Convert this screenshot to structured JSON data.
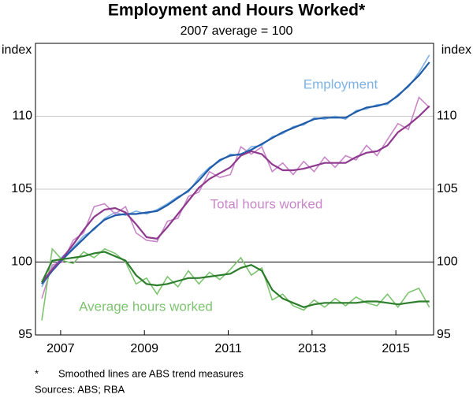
{
  "chart_data": {
    "type": "line",
    "title": "Employment and Hours Worked*",
    "subtitle": "2007 average = 100",
    "y_label_left": "index",
    "y_label_right": "index",
    "x": [
      2006.55,
      2006.8,
      2007.05,
      2007.3,
      2007.55,
      2007.8,
      2008.05,
      2008.3,
      2008.55,
      2008.8,
      2009.05,
      2009.3,
      2009.55,
      2009.8,
      2010.05,
      2010.3,
      2010.55,
      2010.8,
      2011.05,
      2011.3,
      2011.55,
      2011.8,
      2012.05,
      2012.3,
      2012.55,
      2012.8,
      2013.05,
      2013.3,
      2013.55,
      2013.8,
      2014.05,
      2014.3,
      2014.55,
      2014.8,
      2015.05,
      2015.3,
      2015.55,
      2015.8
    ],
    "xlim": [
      2006.4,
      2015.9
    ],
    "xticks": [
      2007,
      2009,
      2011,
      2013,
      2015
    ],
    "ylim": [
      95,
      115
    ],
    "yticks": [
      95,
      100,
      105,
      110
    ],
    "grid": true,
    "reference_line": 100,
    "series": [
      {
        "name": "Employment",
        "color": "#7fb2e5",
        "trend_color": "#1f5ba8",
        "values": [
          98.3,
          99.6,
          100.4,
          101.0,
          101.8,
          102.2,
          103.0,
          103.4,
          103.2,
          103.5,
          103.3,
          103.6,
          104.0,
          104.5,
          104.8,
          105.8,
          106.5,
          106.9,
          107.4,
          107.3,
          107.9,
          108.0,
          108.6,
          108.8,
          109.3,
          109.4,
          109.9,
          109.8,
          110.0,
          109.8,
          110.4,
          110.5,
          110.8,
          110.8,
          111.5,
          112.0,
          113.0,
          114.2
        ],
        "trend": [
          98.5,
          99.4,
          100.2,
          100.9,
          101.6,
          102.3,
          102.9,
          103.2,
          103.3,
          103.3,
          103.4,
          103.5,
          103.9,
          104.4,
          104.9,
          105.6,
          106.4,
          107.0,
          107.3,
          107.4,
          107.7,
          108.1,
          108.5,
          108.9,
          109.2,
          109.5,
          109.8,
          109.9,
          109.9,
          109.9,
          110.3,
          110.6,
          110.7,
          110.9,
          111.4,
          112.1,
          112.8,
          113.7
        ]
      },
      {
        "name": "Total hours worked",
        "color": "#c987c9",
        "trend_color": "#8e3a8e",
        "values": [
          97.5,
          99.8,
          100.0,
          101.5,
          102.0,
          103.8,
          104.0,
          103.3,
          103.8,
          102.0,
          101.5,
          101.4,
          102.8,
          103.0,
          104.5,
          104.8,
          106.2,
          105.8,
          106.0,
          107.9,
          107.4,
          107.9,
          106.2,
          106.8,
          106.0,
          106.9,
          106.2,
          107.2,
          106.5,
          107.3,
          107.0,
          108.0,
          107.3,
          108.4,
          109.5,
          109.1,
          111.3,
          110.6
        ],
        "trend": [
          98.6,
          99.5,
          100.3,
          101.2,
          102.2,
          103.1,
          103.6,
          103.7,
          103.4,
          102.6,
          101.7,
          101.6,
          102.4,
          103.3,
          104.2,
          105.1,
          105.7,
          106.1,
          106.5,
          107.3,
          107.6,
          107.4,
          106.7,
          106.3,
          106.3,
          106.4,
          106.6,
          106.8,
          106.8,
          106.8,
          107.2,
          107.5,
          107.6,
          108.0,
          108.9,
          109.4,
          110.0,
          110.7
        ]
      },
      {
        "name": "Average hours worked",
        "color": "#7dc470",
        "trend_color": "#2c7d2c",
        "values": [
          96.0,
          100.9,
          100.1,
          99.9,
          100.7,
          100.3,
          100.9,
          100.6,
          100.0,
          98.5,
          98.9,
          97.8,
          99.0,
          98.3,
          99.4,
          98.5,
          99.3,
          98.8,
          99.5,
          100.3,
          99.1,
          99.6,
          97.4,
          97.8,
          97.0,
          96.7,
          97.4,
          96.9,
          97.5,
          97.0,
          97.6,
          97.2,
          97.0,
          97.8,
          96.9,
          97.9,
          98.2,
          96.9
        ],
        "trend": [
          98.6,
          100.1,
          100.2,
          100.3,
          100.4,
          100.6,
          100.7,
          100.4,
          100.1,
          99.1,
          98.5,
          98.4,
          98.5,
          98.7,
          98.9,
          98.9,
          99.0,
          99.1,
          99.2,
          99.6,
          99.8,
          99.4,
          98.1,
          97.5,
          97.2,
          96.9,
          97.1,
          97.2,
          97.2,
          97.2,
          97.2,
          97.3,
          97.3,
          97.2,
          97.1,
          97.2,
          97.3,
          97.3
        ]
      }
    ],
    "footnote_marker": "*",
    "footnote": "Smoothed lines are ABS trend measures",
    "sources": "Sources:  ABS; RBA"
  }
}
